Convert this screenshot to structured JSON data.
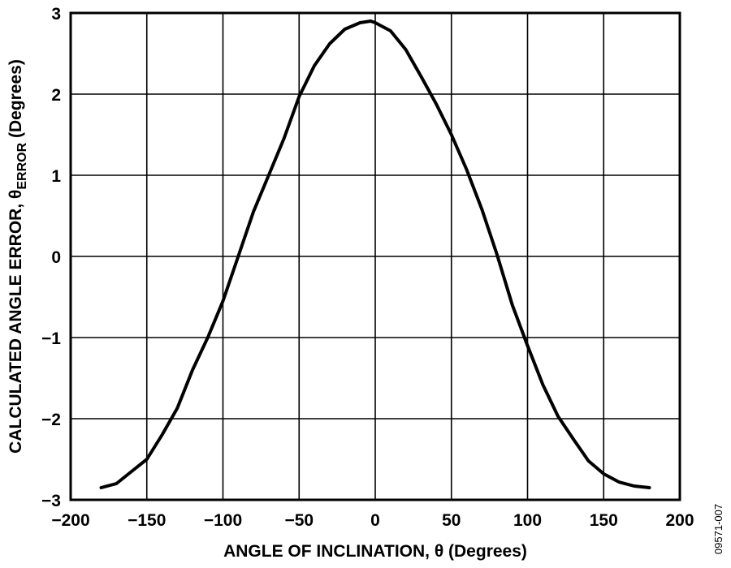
{
  "chart_data": {
    "type": "line",
    "title": "",
    "xlabel": "ANGLE OF INCLINATION, θ (Degrees)",
    "ylabel": {
      "prefix": "CALCULATED ANGLE ERROR, θ",
      "subscript": "ERROR",
      "suffix": " (Degrees)"
    },
    "xlim": [
      -200,
      200
    ],
    "ylim": [
      -3,
      3
    ],
    "xticks": [
      -200,
      -150,
      -100,
      -50,
      0,
      50,
      100,
      150,
      200
    ],
    "yticks": [
      -3,
      -2,
      -1,
      0,
      1,
      2,
      3
    ],
    "xtick_labels": [
      "−200",
      "−150",
      "−100",
      "−50",
      "0",
      "50",
      "100",
      "150",
      "200"
    ],
    "ytick_labels": [
      "−3",
      "−2",
      "−1",
      "0",
      "1",
      "2",
      "3"
    ],
    "grid": true,
    "legend": "none",
    "series": [
      {
        "color": "#000000",
        "x": [
          -180,
          -170,
          -160,
          -150,
          -140,
          -130,
          -120,
          -110,
          -100,
          -90,
          -80,
          -70,
          -60,
          -50,
          -40,
          -30,
          -20,
          -10,
          -3,
          0,
          10,
          20,
          30,
          40,
          50,
          60,
          70,
          80,
          90,
          100,
          110,
          120,
          130,
          140,
          150,
          160,
          170,
          180
        ],
        "y": [
          -2.85,
          -2.8,
          -2.65,
          -2.5,
          -2.2,
          -1.87,
          -1.4,
          -1.0,
          -0.55,
          0.0,
          0.55,
          1.0,
          1.45,
          1.97,
          2.35,
          2.62,
          2.8,
          2.88,
          2.9,
          2.88,
          2.78,
          2.55,
          2.22,
          1.88,
          1.5,
          1.07,
          0.58,
          0.02,
          -0.6,
          -1.1,
          -1.58,
          -1.97,
          -2.25,
          -2.52,
          -2.68,
          -2.78,
          -2.83,
          -2.85
        ]
      }
    ]
  },
  "figure_id": "09571-007"
}
